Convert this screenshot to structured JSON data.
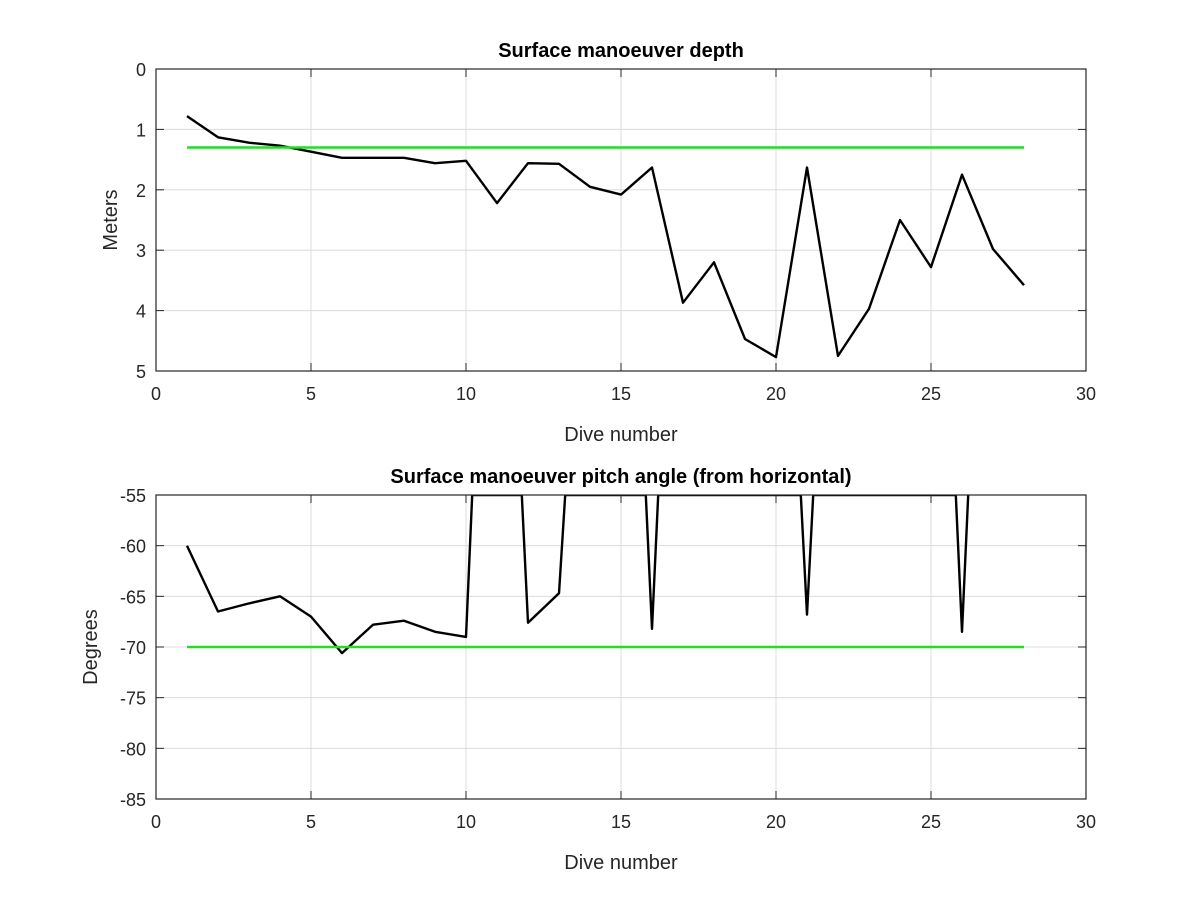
{
  "chart_data": [
    {
      "type": "line",
      "title": "Surface manoeuver depth",
      "xlabel": "Dive number",
      "ylabel": "Meters",
      "xlim": [
        0,
        30
      ],
      "ylim": [
        0,
        5
      ],
      "y_reversed": true,
      "xticks": [
        0,
        5,
        10,
        15,
        20,
        25,
        30
      ],
      "yticks": [
        0,
        1,
        2,
        3,
        4,
        5
      ],
      "grid": true,
      "series": [
        {
          "color": "#000000",
          "x": [
            1,
            2,
            3,
            4,
            5,
            6,
            7,
            8,
            9,
            10,
            11,
            12,
            13,
            14,
            15,
            16,
            17,
            18,
            19,
            20,
            21,
            22,
            23,
            24,
            25,
            26,
            27,
            28
          ],
          "values": [
            0.78,
            1.13,
            1.22,
            1.27,
            1.37,
            1.47,
            1.47,
            1.47,
            1.56,
            1.52,
            2.22,
            1.56,
            1.57,
            1.95,
            2.08,
            1.63,
            3.87,
            3.2,
            4.47,
            4.77,
            1.63,
            4.75,
            3.97,
            2.5,
            3.28,
            1.75,
            2.98,
            3.58
          ]
        },
        {
          "color": "#22dd22",
          "x": [
            1,
            28
          ],
          "values": [
            1.3,
            1.3
          ]
        }
      ]
    },
    {
      "type": "line",
      "title": "Surface manoeuver pitch angle (from horizontal)",
      "xlabel": "Dive number",
      "ylabel": "Degrees",
      "xlim": [
        0,
        30
      ],
      "ylim": [
        -85,
        -55
      ],
      "y_reversed": false,
      "xticks": [
        0,
        5,
        10,
        15,
        20,
        25,
        30
      ],
      "yticks": [
        -55,
        -60,
        -65,
        -70,
        -75,
        -80,
        -85
      ],
      "grid": true,
      "series": [
        {
          "color": "#000000",
          "x": [
            1,
            2,
            3,
            4,
            5,
            6,
            7,
            8,
            9,
            10,
            10.2,
            11.8,
            12,
            13,
            13.2,
            15.8,
            16,
            16.2,
            20.8,
            21,
            21.2,
            25.8,
            26,
            26.2
          ],
          "values": [
            -60,
            -66.5,
            -65.7,
            -65,
            -67,
            -70.6,
            -67.8,
            -67.4,
            -68.5,
            -69,
            -55,
            -55,
            -67.6,
            -64.7,
            -55,
            -55,
            -68.2,
            -55,
            -55,
            -66.8,
            -55,
            -55,
            -68.5,
            -55
          ]
        },
        {
          "color": "#22dd22",
          "x": [
            1,
            28
          ],
          "values": [
            -70,
            -70
          ]
        }
      ]
    }
  ]
}
